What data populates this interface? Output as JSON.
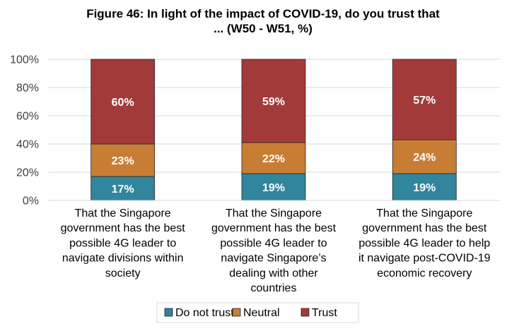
{
  "chart_data": {
    "type": "bar",
    "stacked": true,
    "title": "Figure 46: In light of the impact of COVID-19, do you trust that ... (W50 - W51, %)",
    "title_lines": [
      "Figure 46: In light of the impact of COVID-19, do you trust that",
      "... (W50 - W51, %)"
    ],
    "xlabel": "",
    "ylabel": "",
    "ylim": [
      0,
      100
    ],
    "yticks": [
      {
        "value": 0,
        "label": "0%"
      },
      {
        "value": 20,
        "label": "20%"
      },
      {
        "value": 40,
        "label": "40%"
      },
      {
        "value": 60,
        "label": "60%"
      },
      {
        "value": 80,
        "label": "80%"
      },
      {
        "value": 100,
        "label": "100%"
      }
    ],
    "categories": [
      "That the Singapore government has the best possible 4G leader to navigate divisions within society",
      "That the Singapore government has the best possible 4G leader to navigate Singapore’s dealing with other countries",
      "That the Singapore government has the best possible 4G leader to help it navigate post-COVID-19 economic recovery"
    ],
    "category_lines": [
      [
        "That the Singapore",
        "government has the best",
        "possible 4G leader to",
        "navigate divisions within",
        "society"
      ],
      [
        "That the Singapore",
        "government has the best",
        "possible 4G leader to",
        "navigate Singapore’s",
        "dealing with other",
        "countries"
      ],
      [
        "That the Singapore",
        "government has the best",
        "possible 4G leader to help",
        "it navigate post-COVID-19",
        "economic recovery"
      ]
    ],
    "series": [
      {
        "name": "Do not trust",
        "color": "#31859c",
        "values": [
          17,
          19,
          19
        ],
        "labels": [
          "17%",
          "19%",
          "19%"
        ]
      },
      {
        "name": "Neutral",
        "color": "#c87d34",
        "values": [
          23,
          22,
          24
        ],
        "labels": [
          "23%",
          "22%",
          "24%"
        ]
      },
      {
        "name": "Trust",
        "color": "#a33a3a",
        "values": [
          60,
          59,
          57
        ],
        "labels": [
          "60%",
          "59%",
          "57%"
        ]
      }
    ],
    "grid": true,
    "legend_position": "bottom"
  }
}
